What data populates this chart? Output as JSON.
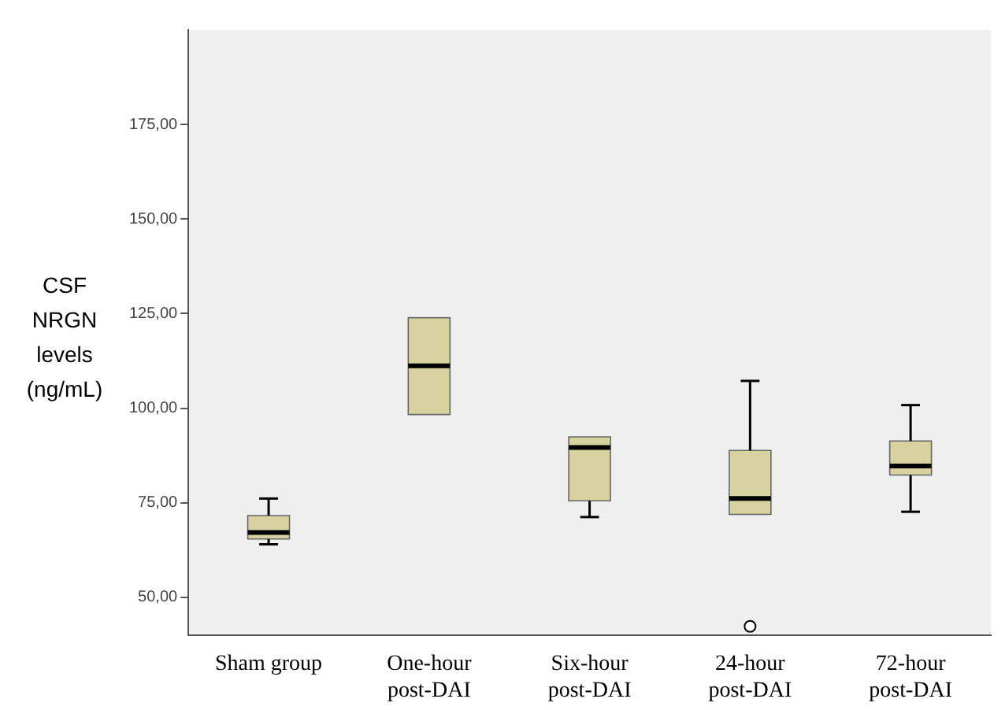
{
  "chart_data": {
    "type": "box",
    "ylabel": "CSF NRGN levels (ng/mL)",
    "categories": [
      "Sham group",
      "One-hour post-DAI",
      "Six-hour post-DAI",
      "24-hour post-DAI",
      "72-hour post-DAI"
    ],
    "color": "#d8d2a0",
    "boxes": [
      {
        "low": 64.0,
        "q1": 65.4,
        "median": 67.1,
        "q3": 71.6,
        "high": 76.1
      },
      {
        "low": 98.3,
        "q1": 98.3,
        "median": 111.2,
        "q3": 123.9,
        "high": 123.9
      },
      {
        "low": 71.2,
        "q1": 75.5,
        "median": 89.6,
        "q3": 92.4,
        "high": 92.4
      },
      {
        "low": 71.9,
        "q1": 71.9,
        "median": 76.1,
        "q3": 88.8,
        "high": 107.2,
        "outliers": [
          42.3
        ]
      },
      {
        "low": 72.6,
        "q1": 82.3,
        "median": 84.7,
        "q3": 91.3,
        "high": 100.8
      }
    ],
    "ylim": [
      40,
      200
    ],
    "yticks": [
      {
        "value": 50,
        "label": "50,00"
      },
      {
        "value": 75,
        "label": "75,00"
      },
      {
        "value": 100,
        "label": "100,00"
      },
      {
        "value": 125,
        "label": "125,00"
      },
      {
        "value": 150,
        "label": "150,00"
      },
      {
        "value": 175,
        "label": "175,00"
      }
    ],
    "grid": false,
    "legend": false
  }
}
